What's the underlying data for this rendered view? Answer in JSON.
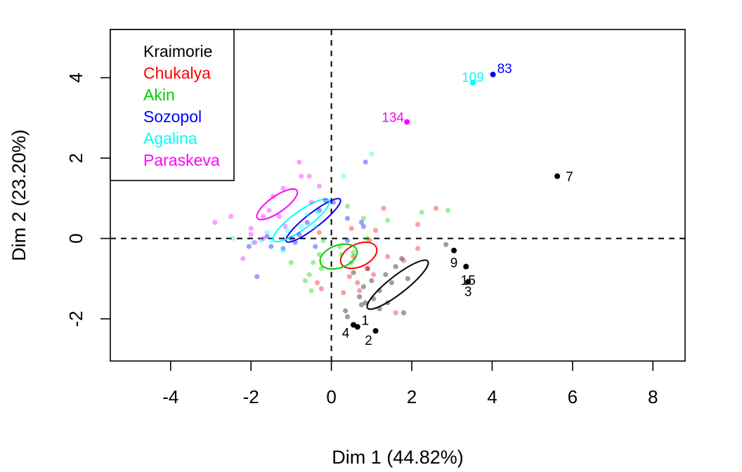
{
  "chart_data": {
    "type": "scatter",
    "xlabel": "Dim 1 (44.82%)",
    "ylabel": "Dim 2 (23.20%)",
    "xlim": [
      -5.5,
      8.8
    ],
    "ylim": [
      -3.05,
      5.2
    ],
    "x_ticks": [
      -4,
      -2,
      0,
      2,
      4,
      6,
      8
    ],
    "y_ticks": [
      -2,
      0,
      2,
      4
    ],
    "grid": false,
    "reference_lines": {
      "x": 0,
      "y": 0,
      "style": "dashed"
    },
    "legend_position": "top-left",
    "series": [
      {
        "name": "Kraimorie",
        "color": "#000000",
        "points": [
          [
            0.35,
            -1.8
          ],
          [
            0.4,
            -1.95
          ],
          [
            0.7,
            -1.45
          ],
          [
            0.8,
            -1.2
          ],
          [
            0.85,
            -1.6
          ],
          [
            1.0,
            -1.05
          ],
          [
            1.2,
            -1.3
          ],
          [
            1.35,
            -0.9
          ],
          [
            1.4,
            -1.6
          ],
          [
            1.5,
            -1.1
          ],
          [
            1.6,
            -0.7
          ],
          [
            1.75,
            -0.5
          ],
          [
            1.8,
            -1.85
          ],
          [
            1.9,
            -1.0
          ],
          [
            0.55,
            -0.85
          ],
          [
            0.9,
            -0.75
          ],
          [
            1.05,
            -1.5
          ],
          [
            2.85,
            -0.15
          ],
          [
            1.2,
            -1.75
          ],
          [
            0.75,
            -1.65
          ]
        ],
        "ellipse": {
          "center": [
            1.65,
            -1.15
          ],
          "rx": 0.95,
          "ry": 0.22,
          "angle": 38
        },
        "labeled_points": [
          {
            "label": "7",
            "x": 5.62,
            "y": 1.55
          },
          {
            "label": "9",
            "x": 3.05,
            "y": -0.3
          },
          {
            "label": "15",
            "x": 3.35,
            "y": -0.7
          },
          {
            "label": "3",
            "x": 3.4,
            "y": -1.08
          },
          {
            "label": "1",
            "x": 0.65,
            "y": -2.2
          },
          {
            "label": "4",
            "x": 0.55,
            "y": -2.15
          },
          {
            "label": "2",
            "x": 1.1,
            "y": -2.3
          }
        ]
      },
      {
        "name": "Chukalya",
        "color": "#ff0000",
        "points": [
          [
            1.3,
            0.75
          ],
          [
            2.6,
            0.75
          ],
          [
            2.15,
            0.35
          ],
          [
            1.1,
            0.2
          ],
          [
            0.5,
            0.25
          ],
          [
            0.45,
            -0.95
          ],
          [
            0.7,
            -1.3
          ],
          [
            1.6,
            -1.85
          ],
          [
            2.15,
            -0.25
          ],
          [
            0.3,
            -1.35
          ],
          [
            -0.35,
            -1.1
          ],
          [
            -0.25,
            -1.25
          ],
          [
            1.05,
            -0.9
          ],
          [
            0.9,
            -0.75
          ],
          [
            1.4,
            -0.45
          ],
          [
            -0.3,
            0.15
          ],
          [
            0.95,
            -0.05
          ],
          [
            0.55,
            -0.45
          ],
          [
            1.8,
            -0.55
          ],
          [
            0.65,
            -1.1
          ]
        ],
        "ellipse": {
          "center": [
            0.68,
            -0.42
          ],
          "rx": 0.48,
          "ry": 0.28,
          "angle": 25
        },
        "labeled_points": []
      },
      {
        "name": "Akin",
        "color": "#00cd00",
        "points": [
          [
            2.25,
            0.65
          ],
          [
            2.9,
            0.7
          ],
          [
            1.4,
            0.45
          ],
          [
            0.8,
            0.5
          ],
          [
            0.4,
            0.8
          ],
          [
            -0.65,
            -1.05
          ],
          [
            -0.55,
            -0.9
          ],
          [
            -0.45,
            -0.6
          ],
          [
            -1.0,
            -0.6
          ],
          [
            -0.3,
            -0.4
          ],
          [
            -0.2,
            -0.05
          ],
          [
            0.2,
            -0.2
          ],
          [
            0.5,
            -0.6
          ],
          [
            0.9,
            0.0
          ],
          [
            -0.5,
            -1.3
          ],
          [
            0.55,
            -0.35
          ],
          [
            -0.25,
            -0.75
          ],
          [
            0.25,
            -0.4
          ]
        ],
        "ellipse": {
          "center": [
            0.18,
            -0.45
          ],
          "rx": 0.48,
          "ry": 0.28,
          "angle": 20
        },
        "labeled_points": []
      },
      {
        "name": "Sozopol",
        "color": "#0000ff",
        "points": [
          [
            0.85,
            1.9
          ],
          [
            -1.85,
            -0.95
          ],
          [
            -1.5,
            -0.2
          ],
          [
            -1.2,
            -0.25
          ],
          [
            -1.0,
            0.0
          ],
          [
            -0.8,
            0.1
          ],
          [
            -0.6,
            0.4
          ],
          [
            -0.3,
            0.7
          ],
          [
            0.05,
            0.9
          ],
          [
            0.4,
            0.5
          ],
          [
            0.8,
            0.3
          ],
          [
            0.4,
            -0.05
          ],
          [
            -0.4,
            -0.2
          ],
          [
            -0.9,
            -0.1
          ],
          [
            -2.05,
            -0.2
          ],
          [
            -1.6,
            0.05
          ],
          [
            0.75,
            0.4
          ],
          [
            -0.15,
            0.95
          ]
        ],
        "ellipse": {
          "center": [
            -0.45,
            0.45
          ],
          "rx": 0.85,
          "ry": 0.18,
          "angle": 38
        },
        "labeled_points": [
          {
            "label": "83",
            "x": 4.02,
            "y": 4.08
          }
        ]
      },
      {
        "name": "Agalina",
        "color": "#00ffff",
        "points": [
          [
            1.0,
            2.1
          ],
          [
            0.3,
            1.55
          ],
          [
            -0.35,
            0.65
          ],
          [
            -0.75,
            0.3
          ],
          [
            -1.1,
            0.2
          ],
          [
            -1.5,
            -0.05
          ],
          [
            -1.6,
            0.15
          ],
          [
            -2.45,
            0.0
          ],
          [
            -1.95,
            -0.1
          ],
          [
            -1.2,
            -0.3
          ],
          [
            -0.6,
            0.6
          ],
          [
            -0.4,
            0.3
          ],
          [
            -1.75,
            -0.05
          ]
        ],
        "ellipse": {
          "center": [
            -0.75,
            0.45
          ],
          "rx": 0.85,
          "ry": 0.22,
          "angle": 36
        },
        "labeled_points": [
          {
            "label": "109",
            "x": 3.52,
            "y": 3.88
          }
        ]
      },
      {
        "name": "Paraskeva",
        "color": "#ff00ff",
        "points": [
          [
            -0.8,
            1.9
          ],
          [
            -0.55,
            1.55
          ],
          [
            -0.75,
            1.55
          ],
          [
            -1.2,
            1.25
          ],
          [
            -1.45,
            1.05
          ],
          [
            -1.7,
            0.55
          ],
          [
            -2.2,
            -0.5
          ],
          [
            -2.5,
            0.55
          ],
          [
            -2.9,
            0.4
          ],
          [
            -2.0,
            0.25
          ],
          [
            -1.9,
            -0.1
          ],
          [
            -1.7,
            0.0
          ],
          [
            -1.3,
            0.55
          ],
          [
            -0.5,
            0.9
          ],
          [
            -0.3,
            1.3
          ],
          [
            -1.55,
            0.7
          ],
          [
            -2.0,
            0.1
          ],
          [
            -1.15,
            0.3
          ]
        ],
        "ellipse": {
          "center": [
            -1.35,
            0.85
          ],
          "rx": 0.6,
          "ry": 0.2,
          "angle": 35
        },
        "labeled_points": [
          {
            "label": "134",
            "x": 1.88,
            "y": 2.9
          }
        ]
      }
    ]
  }
}
